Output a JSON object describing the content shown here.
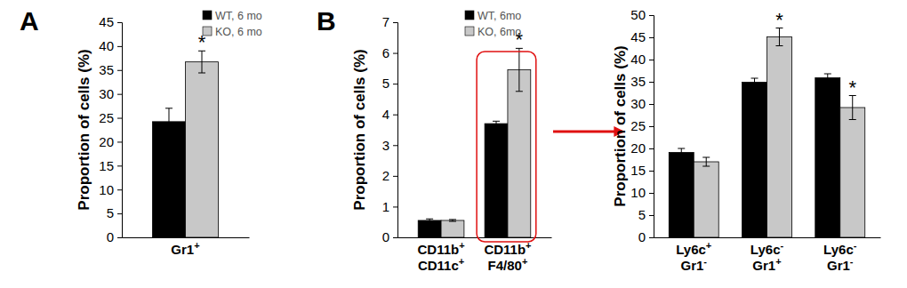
{
  "chart_data": [
    {
      "type": "bar",
      "title": "A",
      "ylabel": "Proportion of cells (%)",
      "categories": [
        "Gr1+"
      ],
      "series": [
        {
          "name": "WT, 6 mo",
          "color": "#000000",
          "values": [
            24.2
          ],
          "errors": [
            2.8
          ],
          "annotations": [
            null
          ]
        },
        {
          "name": "KO, 6 mo",
          "color": "#c8c8c8",
          "values": [
            36.7
          ],
          "errors": [
            2.3
          ],
          "annotations": [
            "*"
          ]
        }
      ],
      "ylim": [
        0,
        45
      ],
      "yticks": [
        0,
        5,
        10,
        15,
        20,
        25,
        30,
        35,
        40,
        45
      ],
      "legend": "upper right"
    },
    {
      "type": "bar",
      "title": "B",
      "ylabel": "Proportion of cells (%)",
      "categories": [
        "CD11b+\nCD11c+",
        "CD11b+\nF4/80+"
      ],
      "series": [
        {
          "name": "WT, 6mo",
          "color": "#000000",
          "values": [
            0.55,
            3.7
          ],
          "errors": [
            0.05,
            0.08
          ],
          "annotations": [
            null,
            null
          ]
        },
        {
          "name": "KO, 6mo",
          "color": "#c8c8c8",
          "values": [
            0.55,
            5.45
          ],
          "errors": [
            0.03,
            0.7
          ],
          "annotations": [
            null,
            "*"
          ]
        }
      ],
      "ylim": [
        0,
        7
      ],
      "yticks": [
        0,
        1,
        2,
        3,
        4,
        5,
        6,
        7
      ],
      "legend": "upper right"
    },
    {
      "type": "bar",
      "ylabel": "Proportion of cells (%)",
      "categories": [
        "Ly6c+\nGr1-",
        "Ly6c-\nGr1+",
        "Ly6c-\nGr1-"
      ],
      "series": [
        {
          "color": "#000000",
          "values": [
            19.1,
            34.9,
            35.9
          ],
          "errors": [
            0.9,
            0.9,
            0.9
          ],
          "annotations": [
            null,
            null,
            null
          ]
        },
        {
          "color": "#c8c8c8",
          "values": [
            17.0,
            45.1,
            29.2
          ],
          "errors": [
            1.0,
            2.0,
            2.7
          ],
          "annotations": [
            null,
            "*",
            "*"
          ]
        }
      ],
      "ylim": [
        0,
        50
      ],
      "yticks": [
        0,
        5,
        10,
        15,
        20,
        25,
        30,
        35,
        40,
        45,
        50
      ]
    }
  ]
}
